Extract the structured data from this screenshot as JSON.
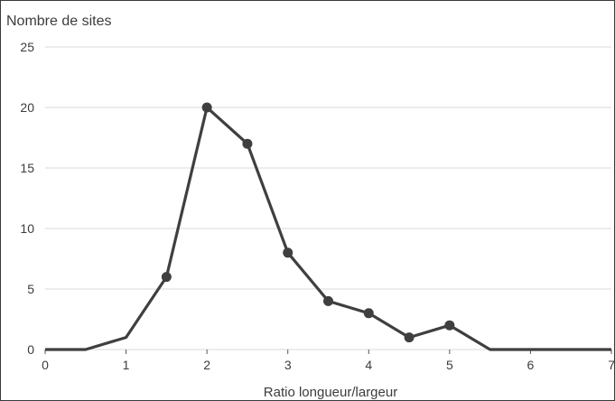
{
  "chart_data": {
    "type": "line",
    "title": "",
    "ylabel": "Nombre de sites",
    "xlabel": "Ratio longueur/largeur",
    "xlim": [
      0,
      7
    ],
    "ylim": [
      0,
      25
    ],
    "x_ticks": [
      "0",
      "1",
      "2",
      "3",
      "4",
      "5",
      "6",
      "7"
    ],
    "y_ticks": [
      "0",
      "5",
      "10",
      "15",
      "20",
      "25"
    ],
    "grid": "horizontal",
    "legend": "none",
    "series": [
      {
        "x": [
          0,
          0.5,
          1,
          1.5,
          2,
          2.5,
          3,
          3.5,
          4,
          4.5,
          5,
          5.5,
          6,
          6.5,
          7
        ],
        "y": [
          0,
          0,
          1,
          6,
          20,
          17,
          8,
          4,
          3,
          1,
          2,
          0,
          0,
          0,
          0
        ],
        "markers": [
          false,
          false,
          false,
          true,
          true,
          true,
          true,
          true,
          true,
          true,
          true,
          false,
          false,
          false,
          false
        ]
      }
    ],
    "line_color": "#3f3f3f",
    "grid_color": "#d9d9d9"
  }
}
